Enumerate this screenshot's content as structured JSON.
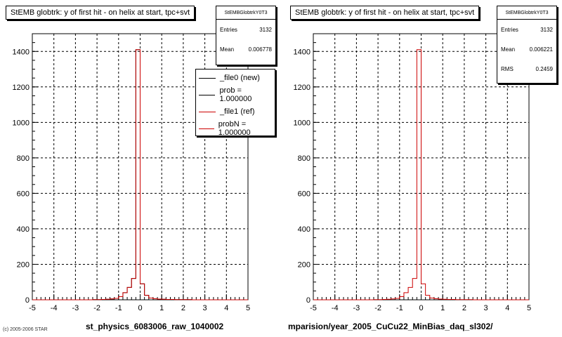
{
  "chart_data": [
    {
      "type": "histogram",
      "title": "StEMB globtrk: y of first hit - on helix at start, tpc+svt",
      "xlabel": "st_physics_6083006_raw_1040002",
      "xlim": [
        -5,
        5
      ],
      "ylim": [
        0,
        1500
      ],
      "xticks": [
        "-5",
        "-4",
        "-3",
        "-2",
        "-1",
        "0",
        "1",
        "2",
        "3",
        "4",
        "5"
      ],
      "yticks": [
        "0",
        "200",
        "400",
        "600",
        "800",
        "1000",
        "1200",
        "1400"
      ],
      "grid": true,
      "bin_width": 0.2,
      "x": [
        -5.0,
        -4.8,
        -4.6,
        -4.4,
        -4.2,
        -4.0,
        -3.8,
        -3.6,
        -3.4,
        -3.2,
        -3.0,
        -2.8,
        -2.6,
        -2.4,
        -2.2,
        -2.0,
        -1.8,
        -1.6,
        -1.4,
        -1.2,
        -1.0,
        -0.8,
        -0.6,
        -0.4,
        -0.2,
        0.0,
        0.2,
        0.4,
        0.6,
        0.8,
        1.0,
        1.2,
        1.4,
        1.6,
        1.8,
        2.0,
        2.2,
        2.4,
        2.6,
        2.8,
        3.0,
        3.2,
        3.4,
        3.6,
        3.8,
        4.0,
        4.2,
        4.4,
        4.6,
        4.8
      ],
      "series": [
        {
          "name": "_file0 (new)",
          "color": "#000000",
          "values": [
            0,
            0,
            0,
            0,
            0,
            0,
            0,
            0,
            0,
            0,
            0,
            0,
            0,
            0,
            1,
            1,
            2,
            3,
            5,
            8,
            18,
            40,
            70,
            120,
            1410,
            90,
            25,
            10,
            6,
            4,
            3,
            2,
            2,
            1,
            1,
            1,
            1,
            0,
            0,
            0,
            0,
            0,
            0,
            0,
            0,
            0,
            0,
            0,
            0,
            0
          ]
        },
        {
          "name": "_file1 (ref)",
          "color": "#cc0000",
          "values": [
            0,
            0,
            0,
            0,
            0,
            0,
            0,
            0,
            0,
            0,
            0,
            0,
            0,
            0,
            1,
            1,
            2,
            3,
            5,
            8,
            18,
            40,
            70,
            120,
            1410,
            90,
            25,
            10,
            6,
            4,
            3,
            2,
            2,
            1,
            1,
            1,
            1,
            0,
            0,
            0,
            0,
            0,
            0,
            0,
            0,
            0,
            0,
            0,
            0,
            0
          ]
        }
      ],
      "stats": {
        "name": "StEMBGlobtrkY0T3",
        "rows": [
          {
            "label": "Entries",
            "value": "3132"
          },
          {
            "label": "Mean",
            "value": "0.006778"
          }
        ]
      },
      "legend": [
        "_file0 (new)",
        "prob = 1.000000",
        "_file1 (ref)",
        "probN = 1.000000"
      ],
      "legend_colors": [
        "#000000",
        "#000000",
        "#cc0000",
        "#cc0000"
      ],
      "legend_position": "top-right"
    },
    {
      "type": "histogram",
      "title": "StEMB globtrk: y of first hit - on helix at start, tpc+svt",
      "xlabel": "mparision/year_2005_CuCu22_MinBias_daq_sl302/",
      "xlim": [
        -5,
        5
      ],
      "ylim": [
        0,
        1500
      ],
      "xticks": [
        "-5",
        "-4",
        "-3",
        "-2",
        "-1",
        "0",
        "1",
        "2",
        "3",
        "4",
        "5"
      ],
      "yticks": [
        "0",
        "200",
        "400",
        "600",
        "800",
        "1000",
        "1200",
        "1400"
      ],
      "grid": true,
      "bin_width": 0.2,
      "x": [
        -5.0,
        -4.8,
        -4.6,
        -4.4,
        -4.2,
        -4.0,
        -3.8,
        -3.6,
        -3.4,
        -3.2,
        -3.0,
        -2.8,
        -2.6,
        -2.4,
        -2.2,
        -2.0,
        -1.8,
        -1.6,
        -1.4,
        -1.2,
        -1.0,
        -0.8,
        -0.6,
        -0.4,
        -0.2,
        0.0,
        0.2,
        0.4,
        0.6,
        0.8,
        1.0,
        1.2,
        1.4,
        1.6,
        1.8,
        2.0,
        2.2,
        2.4,
        2.6,
        2.8,
        3.0,
        3.2,
        3.4,
        3.6,
        3.8,
        4.0,
        4.2,
        4.4,
        4.6,
        4.8
      ],
      "series": [
        {
          "name": "",
          "color": "#cc0000",
          "values": [
            0,
            0,
            0,
            0,
            0,
            0,
            0,
            0,
            0,
            0,
            0,
            0,
            0,
            0,
            1,
            1,
            2,
            3,
            5,
            8,
            18,
            40,
            70,
            120,
            1410,
            90,
            25,
            10,
            6,
            4,
            3,
            2,
            2,
            1,
            1,
            1,
            1,
            0,
            0,
            0,
            0,
            0,
            0,
            0,
            0,
            0,
            0,
            0,
            0,
            0
          ]
        }
      ],
      "stats": {
        "name": "StEMBGlobtrkY0T3",
        "rows": [
          {
            "label": "Entries",
            "value": "3132"
          },
          {
            "label": "Mean",
            "value": "0.006221"
          },
          {
            "label": "RMS",
            "value": "0.2459"
          }
        ]
      }
    }
  ],
  "footer_text": "(c) 2005-2006 STAR"
}
